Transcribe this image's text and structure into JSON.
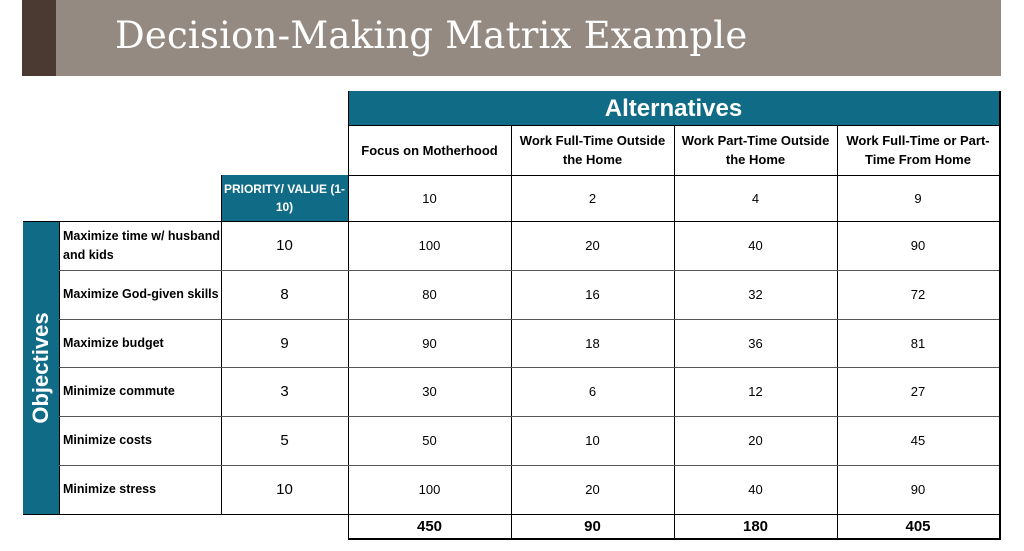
{
  "slide": {
    "title": "Decision-Making Matrix Example"
  },
  "table": {
    "alternatives_header": "Alternatives",
    "objectives_header": "Objectives",
    "priority_header": "PRIORITY/ VALUE (1-10)",
    "alternatives": [
      {
        "label": "Focus on Motherhood",
        "value": "10",
        "total": "450"
      },
      {
        "label": "Work Full-Time Outside the Home",
        "value": "2",
        "total": "90"
      },
      {
        "label": "Work Part-Time Outside the Home",
        "value": "4",
        "total": "180"
      },
      {
        "label": "Work Full-Time or Part-Time From Home",
        "value": "9",
        "total": "405"
      }
    ],
    "objectives": [
      {
        "label": "Maximize time w/ husband and kids",
        "priority": "10",
        "scores": [
          "100",
          "20",
          "40",
          "90"
        ]
      },
      {
        "label": "Maximize God-given skills",
        "priority": "8",
        "scores": [
          "80",
          "16",
          "32",
          "72"
        ]
      },
      {
        "label": "Maximize budget",
        "priority": "9",
        "scores": [
          "90",
          "18",
          "36",
          "81"
        ]
      },
      {
        "label": "Minimize commute",
        "priority": "3",
        "scores": [
          "30",
          "6",
          "12",
          "27"
        ]
      },
      {
        "label": "Minimize costs",
        "priority": "5",
        "scores": [
          "50",
          "10",
          "20",
          "45"
        ]
      },
      {
        "label": "Minimize stress",
        "priority": "10",
        "scores": [
          "100",
          "20",
          "40",
          "90"
        ]
      }
    ]
  }
}
